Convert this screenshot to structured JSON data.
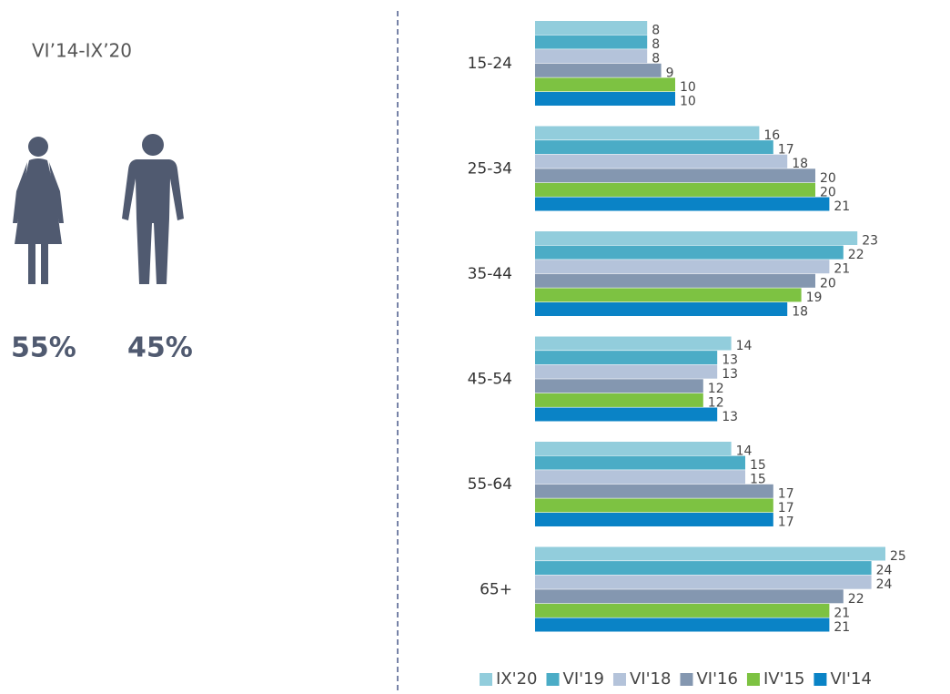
{
  "header": {
    "period": "VI’14-IX’20"
  },
  "gender": [
    "55%",
    "45%"
  ],
  "chart_data": {
    "type": "bar",
    "orientation": "horizontal",
    "categories": [
      "15-24",
      "25-34",
      "35-44",
      "45-54",
      "55-64",
      "65+"
    ],
    "series": [
      {
        "name": "IX'20",
        "color": "#92cddc",
        "values": [
          8,
          16,
          23,
          14,
          14,
          25
        ]
      },
      {
        "name": "VI'19",
        "color": "#4bacc6",
        "values": [
          8,
          17,
          22,
          13,
          15,
          24
        ]
      },
      {
        "name": "VI'18",
        "color": "#b4c3da",
        "values": [
          8,
          18,
          21,
          13,
          15,
          24
        ]
      },
      {
        "name": "VI'16",
        "color": "#8497b0",
        "values": [
          9,
          20,
          20,
          12,
          17,
          22
        ]
      },
      {
        "name": "IV'15",
        "color": "#7dc242",
        "values": [
          10,
          20,
          19,
          12,
          17,
          21
        ]
      },
      {
        "name": "VI'14",
        "color": "#0a83c6",
        "values": [
          10,
          21,
          18,
          13,
          17,
          21
        ]
      }
    ],
    "legend": "bottom"
  }
}
